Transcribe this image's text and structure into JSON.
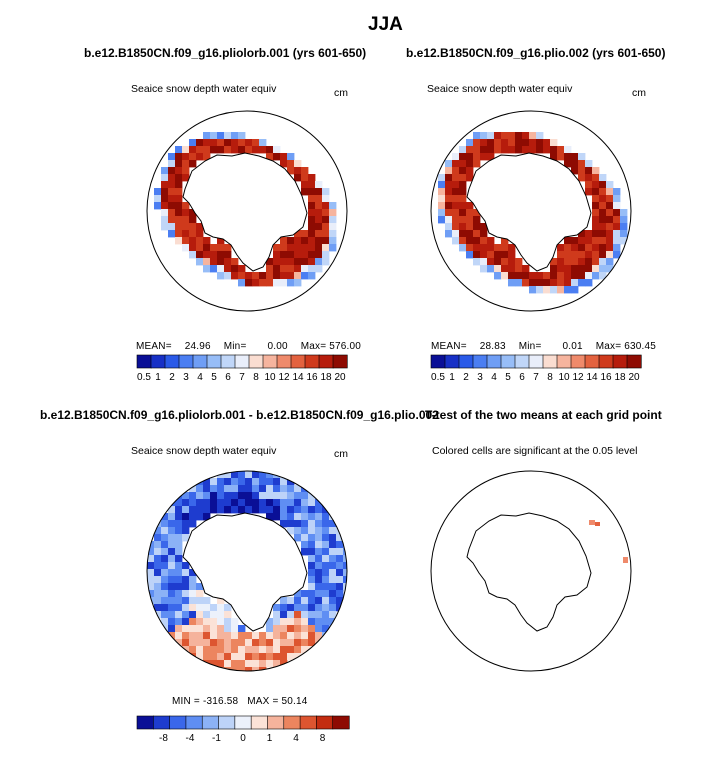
{
  "figure": {
    "title": "JJA"
  },
  "colors": {
    "scale_main": [
      "#0a0f96",
      "#1730c6",
      "#2a5ae8",
      "#4b7ef2",
      "#6f9ef5",
      "#97bdf7",
      "#c0d6f8",
      "#e9eefa",
      "#faddd1",
      "#f6b49e",
      "#ef8a6b",
      "#e3623f",
      "#cf3a1c",
      "#b61c0c",
      "#8e0b02"
    ],
    "scale_diff": [
      "#0a0f96",
      "#1e3ccf",
      "#3a67ea",
      "#5f8ef3",
      "#8cb2f6",
      "#bdd3f8",
      "#ecf1fb",
      "#fbe2d7",
      "#f5b39c",
      "#ec855f",
      "#dd5530",
      "#c32c10",
      "#8e0b02"
    ],
    "land": "#ffffff",
    "coast": "#000000"
  },
  "chart_data": [
    {
      "type": "heatmap",
      "panel": "top-left",
      "title": "b.e12.B1850CN.f09_g16.pliolorb.001 (yrs 601-650)",
      "variable": "Seaice snow depth water equiv",
      "units": "cm",
      "stats": {
        "mean_label": "MEAN=",
        "mean": "24.96",
        "min_label": "Min=",
        "min": "0.00",
        "max_label": "Max=",
        "max": "576.00"
      },
      "colorbar_ticks": [
        "0.5",
        "1",
        "2",
        "3",
        "4",
        "5",
        "6",
        "7",
        "8",
        "10",
        "12",
        "14",
        "16",
        "18",
        "20"
      ]
    },
    {
      "type": "heatmap",
      "panel": "top-right",
      "title": "b.e12.B1850CN.f09_g16.plio.002 (yrs 601-650)",
      "variable": "Seaice snow depth water equiv",
      "units": "cm",
      "stats": {
        "mean_label": "MEAN=",
        "mean": "28.83",
        "min_label": "Min=",
        "min": "0.01",
        "max_label": "Max=",
        "max": "630.45"
      },
      "colorbar_ticks": [
        "0.5",
        "1",
        "2",
        "3",
        "4",
        "5",
        "6",
        "7",
        "8",
        "10",
        "12",
        "14",
        "16",
        "18",
        "20"
      ]
    },
    {
      "type": "heatmap",
      "panel": "bottom-left",
      "title": "b.e12.B1850CN.f09_g16.pliolorb.001 - b.e12.B1850CN.f09_g16.plio.002",
      "variable": "Seaice snow depth water equiv",
      "units": "cm",
      "stats": {
        "min_label": "MIN =",
        "min": "-316.58",
        "max_label": "MAX =",
        "max": "50.14"
      },
      "colorbar_ticks": [
        "-8",
        "-4",
        "-1",
        "0",
        "1",
        "4",
        "8"
      ]
    },
    {
      "type": "heatmap",
      "panel": "bottom-right",
      "title": "T-test of the two means at each grid point",
      "variable": "Colored cells are significant at the 0.05 level"
    }
  ]
}
